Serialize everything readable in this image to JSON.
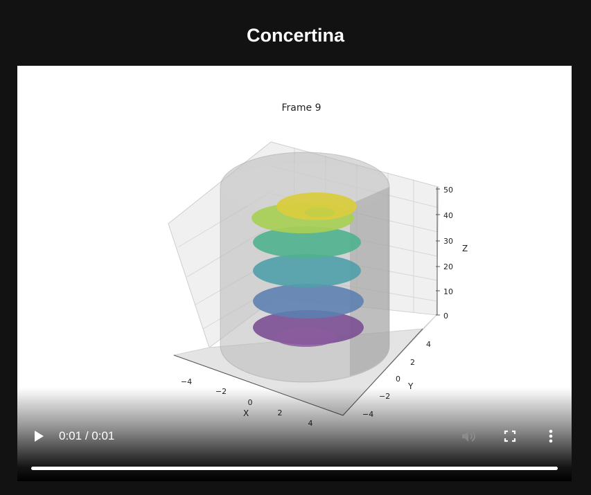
{
  "page": {
    "title": "Concertina"
  },
  "video": {
    "current_time": "0:01",
    "separator": " / ",
    "duration": "0:01",
    "progress": 1.0,
    "volume_state": "muted-disabled"
  },
  "controls": {
    "play_icon": "play-icon",
    "mute_icon": "volume-icon",
    "fullscreen_icon": "fullscreen-icon",
    "more_icon": "more-vertical-icon"
  },
  "plot": {
    "title": "Frame 9",
    "x_label": "X",
    "y_label": "Y",
    "z_label": "Z",
    "x_ticks": [
      "−4",
      "−2",
      "0",
      "2",
      "4"
    ],
    "y_ticks": [
      "−4",
      "−2",
      "0",
      "2",
      "4"
    ],
    "z_ticks": [
      "0",
      "10",
      "20",
      "30",
      "40",
      "50"
    ],
    "colors": {
      "cylinder": "#c8c8c8",
      "layer_1": "#7a4f92",
      "layer_2": "#5b7fb0",
      "layer_3": "#4f9eaa",
      "layer_4": "#4fb38e",
      "layer_5": "#a8cf55",
      "layer_6": "#d9cc3f"
    }
  }
}
